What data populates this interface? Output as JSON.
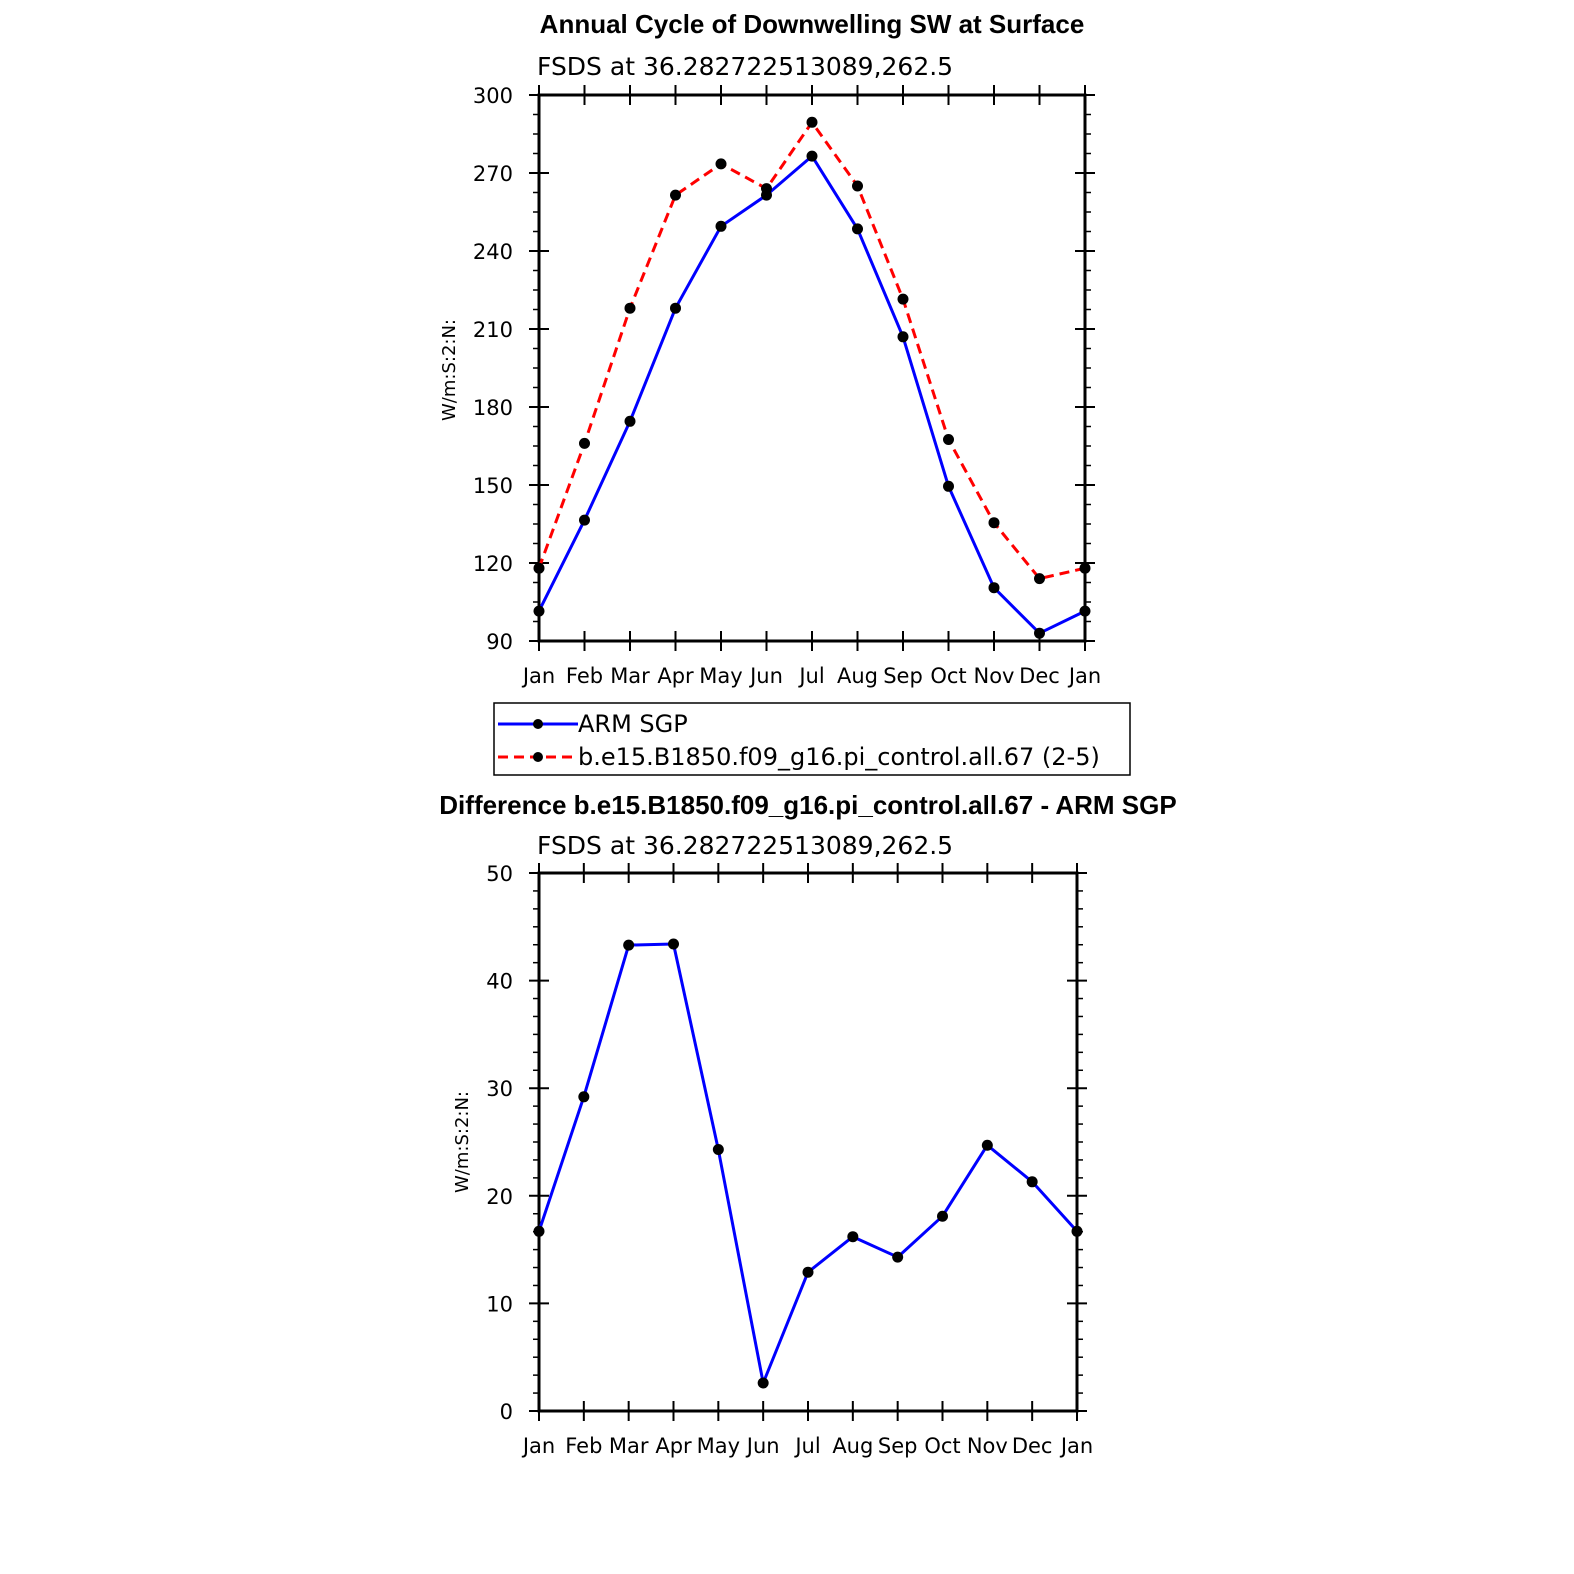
{
  "chart_data": [
    {
      "type": "line",
      "title": "Annual Cycle of Downwelling SW at Surface",
      "subtitle": "FSDS at 36.282722513089,262.5",
      "ylabel": "W/m:S:2:N:",
      "xlabel": "",
      "categories": [
        "Jan",
        "Feb",
        "Mar",
        "Apr",
        "May",
        "Jun",
        "Jul",
        "Aug",
        "Sep",
        "Oct",
        "Nov",
        "Dec",
        "Jan"
      ],
      "ylim": [
        90,
        300
      ],
      "yticks": [
        90,
        120,
        150,
        180,
        210,
        240,
        270,
        300
      ],
      "series": [
        {
          "name": "ARM SGP",
          "color": "#0000ff",
          "dash": "solid",
          "values": [
            101.5,
            136.5,
            174.5,
            218.0,
            249.5,
            261.5,
            276.5,
            248.5,
            207.0,
            149.5,
            110.5,
            93.0,
            101.5
          ]
        },
        {
          "name": "b.e15.B1850.f09_g16.pi_control.all.67 (2-5)",
          "color": "#ff0000",
          "dash": "dashed",
          "values": [
            118.0,
            166.0,
            218.0,
            261.5,
            273.5,
            264.0,
            289.5,
            265.0,
            221.5,
            167.5,
            135.5,
            114.0,
            118.0
          ]
        }
      ],
      "legend": "bottom"
    },
    {
      "type": "line",
      "title": "Difference b.e15.B1850.f09_g16.pi_control.all.67 - ARM SGP",
      "subtitle": "FSDS at 36.282722513089,262.5",
      "ylabel": "W/m:S:2:N:",
      "xlabel": "",
      "categories": [
        "Jan",
        "Feb",
        "Mar",
        "Apr",
        "May",
        "Jun",
        "Jul",
        "Aug",
        "Sep",
        "Oct",
        "Nov",
        "Dec",
        "Jan"
      ],
      "ylim": [
        0,
        50
      ],
      "yticks": [
        0,
        10,
        20,
        30,
        40,
        50
      ],
      "series": [
        {
          "color": "#0000ff",
          "dash": "solid",
          "values": [
            16.7,
            29.2,
            43.3,
            43.4,
            24.3,
            2.6,
            12.9,
            16.2,
            14.3,
            18.1,
            24.7,
            21.3,
            16.7
          ]
        }
      ]
    }
  ]
}
